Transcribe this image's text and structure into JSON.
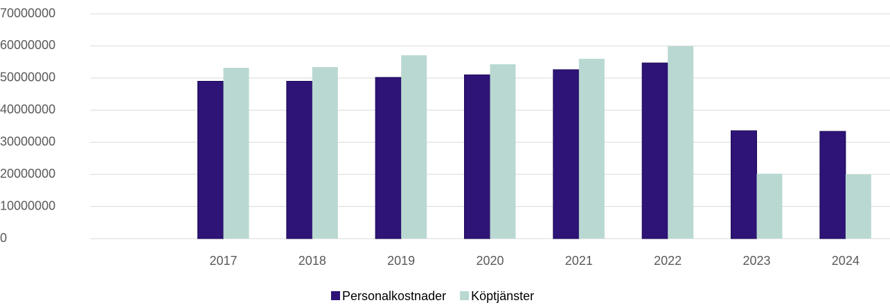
{
  "chart_data": {
    "type": "bar",
    "categories": [
      null,
      "2017",
      "2018",
      "2019",
      "2020",
      "2021",
      "2022",
      "2023",
      "2024"
    ],
    "series": [
      {
        "name": "Personalkostnader",
        "color": "#2e1476",
        "values": [
          null,
          49000000,
          49000000,
          50200000,
          51000000,
          52600000,
          54700000,
          33600000,
          33400000
        ]
      },
      {
        "name": "Köptjänster",
        "color": "#b9d8d2",
        "values": [
          null,
          53200000,
          53400000,
          57100000,
          54300000,
          56000000,
          59900000,
          20200000,
          20000000
        ]
      }
    ],
    "ylim": [
      0,
      70000000
    ],
    "yticks": [
      0,
      10000000,
      20000000,
      30000000,
      40000000,
      50000000,
      60000000,
      70000000
    ],
    "grid": true,
    "legend": "bottom"
  }
}
